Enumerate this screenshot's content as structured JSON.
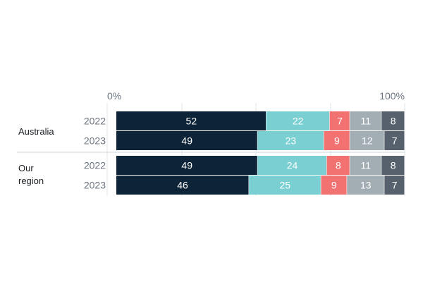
{
  "chart_data": {
    "type": "bar",
    "orientation": "horizontal",
    "stacked": true,
    "normalized_to_percent": true,
    "title": "",
    "xlim": [
      0,
      100
    ],
    "x_tick_labels": [
      "0%",
      "100%"
    ],
    "grid": true,
    "legend": "none",
    "groups": [
      {
        "label": "Australia",
        "rows": [
          {
            "year": "2022",
            "values": [
              52,
              22,
              7,
              11,
              8
            ]
          },
          {
            "year": "2023",
            "values": [
              49,
              23,
              9,
              12,
              7
            ]
          }
        ]
      },
      {
        "label": "Our region",
        "rows": [
          {
            "year": "2022",
            "values": [
              49,
              24,
              8,
              11,
              8
            ]
          },
          {
            "year": "2023",
            "values": [
              46,
              25,
              9,
              13,
              7
            ]
          }
        ]
      }
    ],
    "series_colors": [
      "#0c2338",
      "#79cfd1",
      "#f27171",
      "#a3aeb4",
      "#56616d"
    ],
    "label_colors": [
      "#ffffff",
      "#ffffff",
      "#ffffff",
      "#ffffff",
      "#ffffff"
    ]
  }
}
